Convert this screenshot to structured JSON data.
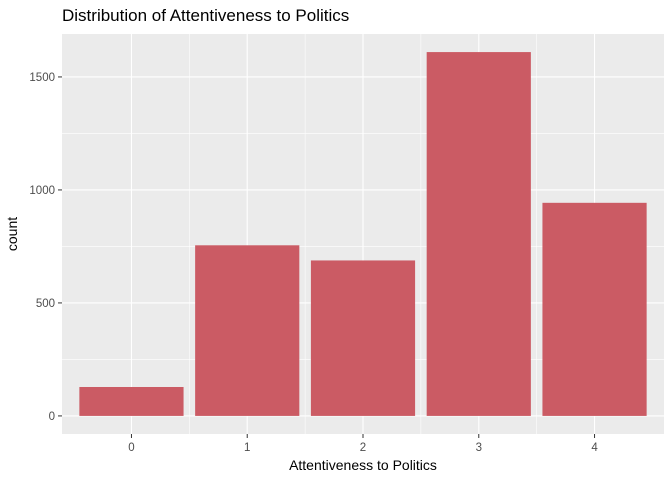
{
  "chart_data": {
    "type": "bar",
    "title": "Distribution of Attentiveness to Politics",
    "xlabel": "Attentiveness to Politics",
    "ylabel": "count",
    "categories": [
      "0",
      "1",
      "2",
      "3",
      "4"
    ],
    "values": [
      128,
      755,
      688,
      1610,
      943
    ],
    "yticks": [
      0,
      500,
      1000,
      1500
    ],
    "ytick_labels": [
      "0",
      "500",
      "1000",
      "1500"
    ],
    "ylim": [
      -80,
      1690
    ],
    "grid": true,
    "bar_color": "#cb5b64",
    "panel_background": "#ebebeb",
    "gridline_color": "#ffffff"
  }
}
